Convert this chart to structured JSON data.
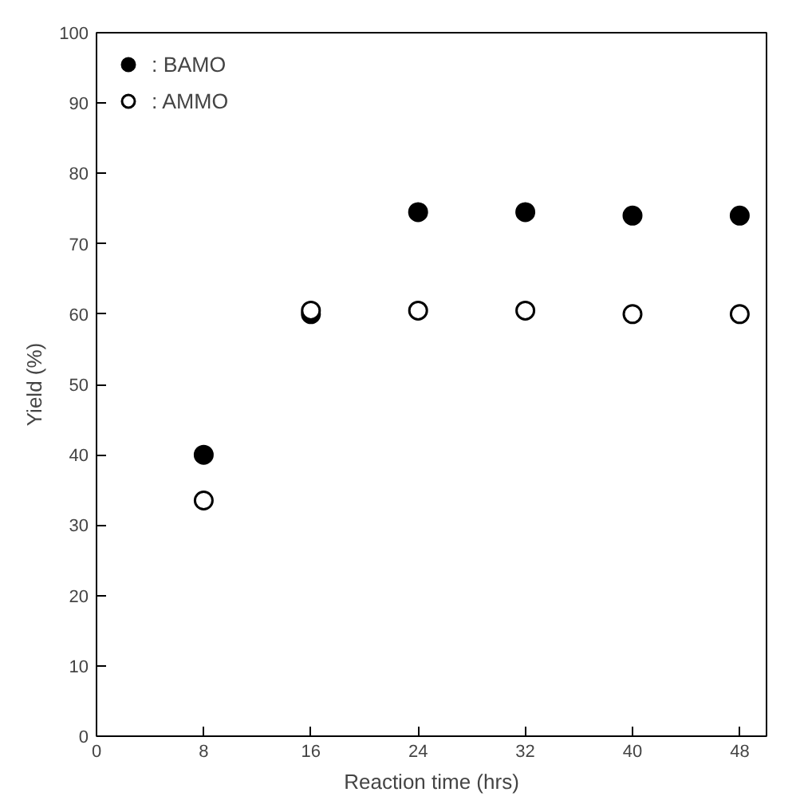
{
  "chart_data": {
    "type": "scatter",
    "xlabel": "Reaction time (hrs)",
    "ylabel": "Yield (%)",
    "x": [
      8,
      16,
      24,
      32,
      40,
      48
    ],
    "series": [
      {
        "name": ": BAMO",
        "color": "#000000",
        "values": [
          40,
          60,
          74.5,
          74.5,
          74,
          74
        ]
      },
      {
        "name": ": AMMO",
        "color": "#ffffff",
        "values": [
          33.5,
          60.5,
          60.5,
          60.5,
          60,
          60
        ]
      }
    ],
    "xlim": [
      0,
      50
    ],
    "ylim": [
      0,
      100
    ],
    "xticks": [
      0,
      8,
      16,
      24,
      32,
      40,
      48
    ],
    "yticks": [
      0,
      10,
      20,
      30,
      40,
      50,
      60,
      70,
      80,
      90,
      100
    ],
    "marker": "circle",
    "grid": false,
    "legend": "top left"
  }
}
